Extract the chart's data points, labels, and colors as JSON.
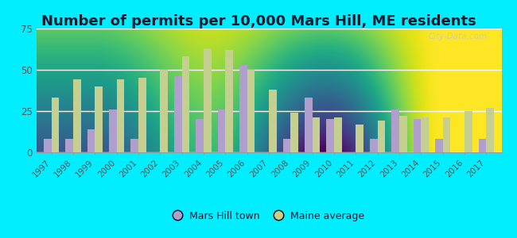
{
  "title": "Number of permits per 10,000 Mars Hill, ME residents",
  "years": [
    1997,
    1998,
    1999,
    2000,
    2001,
    2002,
    2003,
    2004,
    2005,
    2006,
    2007,
    2008,
    2009,
    2010,
    2011,
    2012,
    2013,
    2014,
    2015,
    2016,
    2017
  ],
  "mars_hill": [
    8,
    8,
    14,
    26,
    8,
    0,
    46,
    20,
    26,
    53,
    0,
    8,
    33,
    20,
    0,
    8,
    26,
    20,
    8,
    0,
    8
  ],
  "maine_avg": [
    33,
    44,
    40,
    44,
    45,
    50,
    58,
    63,
    62,
    50,
    38,
    24,
    21,
    21,
    17,
    19,
    22,
    21,
    21,
    25,
    27
  ],
  "mars_hill_color": "#b09fcc",
  "maine_avg_color": "#c4cf90",
  "bg_color": "#00eeff",
  "plot_bg_top": "#f0faf0",
  "plot_bg_bottom": "#d4ecc4",
  "ylim": [
    0,
    75
  ],
  "yticks": [
    0,
    25,
    50,
    75
  ],
  "title_fontsize": 13,
  "title_color": "#1a1a2e",
  "tick_color": "#555555",
  "legend_label_mars_hill": "Mars Hill town",
  "legend_label_maine": "Maine average"
}
